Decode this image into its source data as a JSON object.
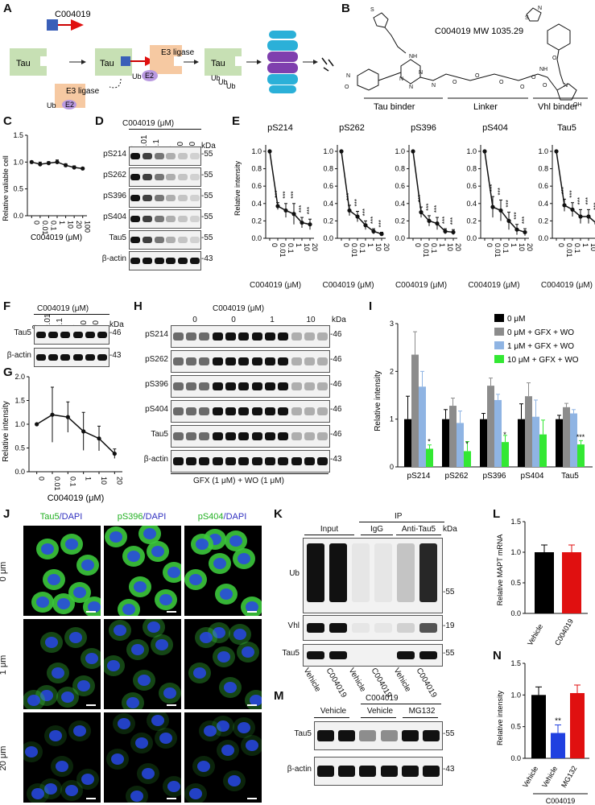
{
  "panel_labels": [
    "A",
    "B",
    "C",
    "D",
    "E",
    "F",
    "G",
    "H",
    "I",
    "J",
    "K",
    "L",
    "M",
    "N"
  ],
  "panelA": {
    "compound": "C004019",
    "tau": "Tau",
    "e3": "E3 ligase",
    "e2": "E2",
    "ub": "Ub",
    "ubs": [
      "Ub",
      "Ub",
      "Ub"
    ]
  },
  "panelB": {
    "title": "C004019  MW 1035.29",
    "segments": [
      "Tau binder",
      "Linker",
      "Vhl binder"
    ],
    "atoms": [
      "N",
      "NH",
      "N",
      "N",
      "N",
      "N",
      "O",
      "O",
      "O",
      "O",
      "NH",
      "O",
      "O",
      "S",
      "N",
      "N",
      "O",
      "OH",
      "O",
      "S"
    ]
  },
  "panelC": {
    "ylabel": "Relative valiable cell",
    "xlabel": "C004019 (μM)",
    "ticks": [
      "0",
      "0.01",
      "0.1",
      "1",
      "10",
      "20",
      "100"
    ],
    "yticks": [
      "0.0",
      "0.5",
      "1.0",
      "1.5"
    ]
  },
  "panelD": {
    "header": "C004019 (μM)",
    "conc": [
      "0",
      "0.01",
      "0.1",
      "1",
      "10",
      "20"
    ],
    "kda": "kDa",
    "rows": [
      {
        "label": "pS214",
        "mw": "-55"
      },
      {
        "label": "pS262",
        "mw": "-55"
      },
      {
        "label": "pS396",
        "mw": "-55"
      },
      {
        "label": "pS404",
        "mw": "-55"
      },
      {
        "label": "Tau5",
        "mw": "-55"
      },
      {
        "label": "β-actin",
        "mw": "-43"
      }
    ]
  },
  "panelE": {
    "ylabel": "Relative intensity",
    "xlabel": "C004019 (μM)",
    "titles": [
      "pS214",
      "pS262",
      "pS396",
      "pS404",
      "Tau5"
    ],
    "ticks": [
      "0",
      "0.01",
      "0.1",
      "1",
      "10",
      "20"
    ],
    "yticks": [
      "0.0",
      "0.2",
      "0.4",
      "0.6",
      "0.8",
      "1.0"
    ],
    "sig": "***"
  },
  "panelF": {
    "header": "C004019 (μM)",
    "conc": [
      "0",
      "0.01",
      "0.1",
      "1",
      "10",
      "20"
    ],
    "kda": "kDa",
    "rows": [
      {
        "label": "Tau5",
        "mw": "-46"
      },
      {
        "label": "β-actin",
        "mw": "-43"
      }
    ]
  },
  "panelG": {
    "ylabel": "Relative intensity",
    "xlabel": "C004019 (μM)",
    "ticks": [
      "0",
      "0.01",
      "0.1",
      "1",
      "10",
      "20"
    ],
    "yticks": [
      "0.0",
      "0.5",
      "1.0",
      "1.5",
      "2.0"
    ]
  },
  "panelH": {
    "header": "C004019 (μM)",
    "groups": [
      "0",
      "0",
      "1",
      "10"
    ],
    "kda": "kDa",
    "footer": "GFX (1 μM) + WO (1 μM)",
    "rows": [
      {
        "label": "pS214",
        "mw": "-46"
      },
      {
        "label": "pS262",
        "mw": "-46"
      },
      {
        "label": "pS396",
        "mw": "-46"
      },
      {
        "label": "pS404",
        "mw": "-46"
      },
      {
        "label": "Tau5",
        "mw": "-46"
      },
      {
        "label": "β-actin",
        "mw": "-43"
      }
    ]
  },
  "panelI": {
    "ylabel": "Relative intensity",
    "yticks": [
      "0",
      "1",
      "2",
      "3"
    ],
    "categories": [
      "pS214",
      "pS262",
      "pS396",
      "pS404",
      "Tau5"
    ],
    "legend": [
      "0 μM",
      "0 μM + GFX + WO",
      "1 μM + GFX + WO",
      "10 μM + GFX + WO"
    ],
    "colors": [
      "#000000",
      "#8c8c8c",
      "#8fb4e3",
      "#33e833"
    ],
    "sigs": [
      "*",
      "*",
      "*",
      "",
      "***"
    ]
  },
  "panelJ": {
    "cols": [
      {
        "a": "Tau5",
        "b": "/DAPI"
      },
      {
        "a": "pS396",
        "b": "/DAPI"
      },
      {
        "a": "pS404",
        "b": "/DAPI"
      }
    ],
    "rows": [
      "0 μm",
      "1 μm",
      "20 μm"
    ]
  },
  "panelK": {
    "ip": "IP",
    "groups": [
      "Input",
      "IgG",
      "Anti-Tau5"
    ],
    "kda": "kDa",
    "rows": [
      {
        "label": "Ub",
        "mw": "-55"
      },
      {
        "label": "Vhl",
        "mw": "-19"
      },
      {
        "label": "Tau5",
        "mw": "-55"
      }
    ],
    "lanes": [
      "Vehicle",
      "C004019",
      "Vehicle",
      "C004019",
      "Vehicle",
      "C004019"
    ]
  },
  "panelL": {
    "ylabel": "Relative MAPT mRNA",
    "yticks": [
      "0.0",
      "0.5",
      "1.0",
      "1.5"
    ],
    "bars": [
      "Vehicle",
      "C004019"
    ]
  },
  "panelM": {
    "header": "C004019",
    "groups": [
      "Vehicle",
      "Vehicle",
      "MG132"
    ],
    "rows": [
      {
        "label": "Tau5",
        "mw": "-55"
      },
      {
        "label": "β-actin",
        "mw": "-43"
      }
    ]
  },
  "panelN": {
    "ylabel": "Relative intensity",
    "yticks": [
      "0.0",
      "0.5",
      "1.0",
      "1.5"
    ],
    "bars": [
      "Vehicle",
      "Vehicle",
      "MG132"
    ],
    "bracket": "C004019",
    "sig": "**"
  },
  "chart_data": [
    {
      "type": "line",
      "panel": "C",
      "x": [
        "0",
        "0.01",
        "0.1",
        "1",
        "10",
        "20",
        "100"
      ],
      "values": [
        1.0,
        0.96,
        0.98,
        1.0,
        0.94,
        0.9,
        0.88
      ],
      "ylim": [
        0,
        1.5
      ]
    },
    {
      "type": "line",
      "panel": "E",
      "x": [
        "0",
        "0.01",
        "0.1",
        "1",
        "10",
        "20"
      ],
      "series": [
        {
          "name": "pS214",
          "values": [
            1.0,
            0.37,
            0.32,
            0.28,
            0.18,
            0.16
          ]
        },
        {
          "name": "pS262",
          "values": [
            1.0,
            0.32,
            0.25,
            0.15,
            0.08,
            0.05
          ]
        },
        {
          "name": "pS396",
          "values": [
            1.0,
            0.3,
            0.2,
            0.17,
            0.08,
            0.07
          ]
        },
        {
          "name": "pS404",
          "values": [
            1.0,
            0.36,
            0.32,
            0.2,
            0.1,
            0.07
          ]
        },
        {
          "name": "Tau5",
          "values": [
            1.0,
            0.38,
            0.33,
            0.25,
            0.25,
            0.17
          ]
        }
      ],
      "ylim": [
        0,
        1.0
      ]
    },
    {
      "type": "line",
      "panel": "G",
      "x": [
        "0",
        "0.01",
        "0.1",
        "1",
        "10",
        "20"
      ],
      "values": [
        1.0,
        1.2,
        1.15,
        0.85,
        0.7,
        0.38
      ],
      "ylim": [
        0,
        2.0
      ]
    },
    {
      "type": "bar",
      "panel": "I",
      "categories": [
        "pS214",
        "pS262",
        "pS396",
        "pS404",
        "Tau5"
      ],
      "series": [
        {
          "name": "0 μM",
          "values": [
            1.0,
            1.0,
            1.0,
            1.0,
            1.0
          ]
        },
        {
          "name": "0 μM + GFX + WO",
          "values": [
            2.35,
            1.28,
            1.7,
            1.48,
            1.25
          ]
        },
        {
          "name": "1 μM + GFX + WO",
          "values": [
            1.68,
            0.92,
            1.4,
            1.05,
            1.12
          ]
        },
        {
          "name": "10 μM + GFX + WO",
          "values": [
            0.38,
            0.33,
            0.52,
            0.68,
            0.47
          ]
        }
      ],
      "ylim": [
        0,
        3
      ]
    },
    {
      "type": "bar",
      "panel": "L",
      "categories": [
        "Vehicle",
        "C004019"
      ],
      "values": [
        1.0,
        1.0
      ],
      "ylim": [
        0,
        1.5
      ]
    },
    {
      "type": "bar",
      "panel": "N",
      "categories": [
        "Vehicle",
        "Vehicle",
        "MG132"
      ],
      "values": [
        1.0,
        0.4,
        1.03
      ],
      "ylim": [
        0,
        1.5
      ]
    }
  ]
}
